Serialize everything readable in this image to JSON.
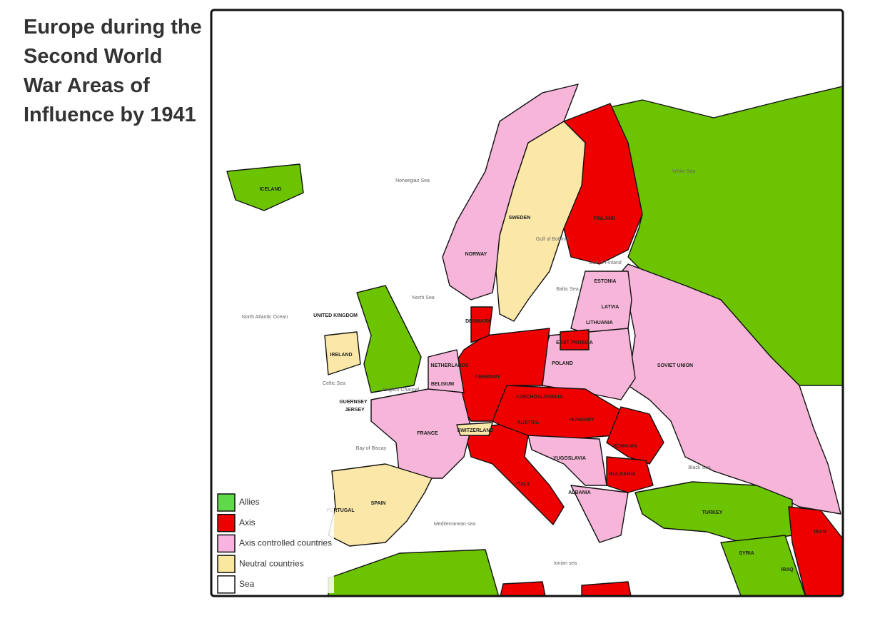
{
  "title": "Europe during the Second World War Areas of Influence by 1941",
  "legend": [
    {
      "label": "Allies",
      "color": "#5fd94a"
    },
    {
      "label": "Axis",
      "color": "#ee0000"
    },
    {
      "label": "Axis controlled countries",
      "color": "#f9b3e0"
    },
    {
      "label": "Neutral countries",
      "color": "#fbe8a0"
    },
    {
      "label": "Sea",
      "color": "#ffffff"
    }
  ],
  "country_labels": [
    "ICELAND",
    "SWEDEN",
    "FINLAND",
    "NORWAY",
    "ESTONIA",
    "LATVIA",
    "LITHUANIA",
    "DENMARK",
    "EAST PRUSSIA",
    "UNITED KINGDOM",
    "IRELAND",
    "NETHERLANDS",
    "BELGIUM",
    "GERMANY",
    "POLAND",
    "SOVIET UNION",
    "CZECHOSLOVAKIA",
    "AUSTRIA",
    "HUNGARY",
    "SWITZERLAND",
    "FRANCE",
    "ROMANIA",
    "YUGOSLAVIA",
    "BULGARIA",
    "ALBANIA",
    "ITALY",
    "SPAIN",
    "PORTUGAL",
    "TURKEY",
    "SYRIA",
    "IRAQ",
    "IRAN",
    "GUERNSEY",
    "JERSEY"
  ],
  "sea_labels": [
    "Norwegian Sea",
    "North Sea",
    "North Atlantic Ocean",
    "Celtic Sea",
    "English Channel",
    "Bay of Biscay",
    "Mediterranean sea",
    "Ionian sea",
    "Black Sea",
    "White Sea",
    "Gulf of Bothnia",
    "Baltic Sea",
    "Gulf of Finland"
  ]
}
